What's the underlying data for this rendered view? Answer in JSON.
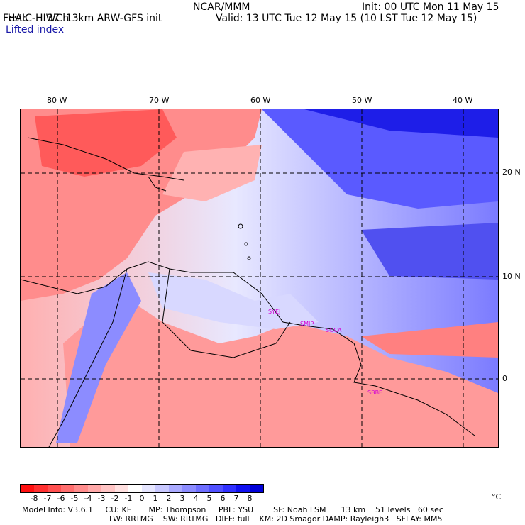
{
  "header": {
    "model_title": "HAIC-HIWC 13km ARW-GFS init",
    "org": "NCAR/MMM",
    "init": "Init: 00 UTC Mon 11 May 15",
    "fcst_label": "Fcst:",
    "fcst_value": "37 h",
    "valid": "Valid: 13 UTC Tue 12 May 15 (10 LST Tue 12 May 15)",
    "field": "Lifted index"
  },
  "map": {
    "lon_labels": [
      "80 W",
      "70 W",
      "60 W",
      "50 W",
      "40 W"
    ],
    "lat_labels": [
      "20 N",
      "10 N",
      "0"
    ],
    "stations": [
      "SYEJ",
      "SMJP",
      "SOCA",
      "SBBE"
    ]
  },
  "colorbar": {
    "colors": [
      "#ff1010",
      "#ff3030",
      "#ff5050",
      "#ff6e6e",
      "#ff8c8c",
      "#ffa8a8",
      "#ffc4c4",
      "#ffe0e0",
      "#ffffff",
      "#e6e6ff",
      "#c8c8ff",
      "#aaaaff",
      "#8c8cff",
      "#6e6eff",
      "#5050ff",
      "#3030ff",
      "#1010f0",
      "#0000d8"
    ],
    "tick_labels": [
      "-8",
      "-7",
      "-6",
      "-5",
      "-4",
      "-3",
      "-2",
      "-1",
      "0",
      "1",
      "2",
      "3",
      "4",
      "5",
      "6",
      "7",
      "8"
    ],
    "unit": "°C"
  },
  "footer": {
    "line1": "Model Info: V3.6.1     CU: KF       MP: Thompson     PBL: YSU        SF: Noah LSM      13 km    51 levels   60 sec",
    "line2": "LW: RRTMG    SW: RRTMG   DIFF: full    KM: 2D Smagor DAMP: Rayleigh3   SFLAY: MM5"
  }
}
